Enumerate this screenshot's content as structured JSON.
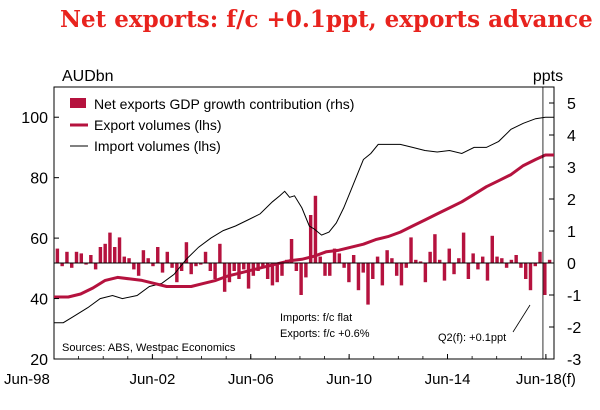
{
  "title": "Net exports: f/c +0.1ppt, exports advance",
  "chart_data": {
    "type": "bar+line",
    "y_left_label": "AUDbn",
    "y_right_label": "ppts",
    "y_left_lim": [
      20,
      110
    ],
    "y_right_lim": [
      -3,
      5.5
    ],
    "y_left_ticks": [
      20,
      40,
      60,
      80,
      100
    ],
    "y_right_ticks": [
      -3,
      -2,
      -1,
      0,
      1,
      2,
      3,
      4,
      5
    ],
    "x_range": [
      1998.42,
      2018.75
    ],
    "x_ticks": [
      {
        "x": 1998.42,
        "label": "Jun-98"
      },
      {
        "x": 2002.42,
        "label": "Jun-02"
      },
      {
        "x": 2006.42,
        "label": "Jun-06"
      },
      {
        "x": 2010.42,
        "label": "Jun-10"
      },
      {
        "x": 2014.42,
        "label": "Jun-14"
      },
      {
        "x": 2018.42,
        "label": "Jun-18(f)"
      }
    ],
    "forecast_start": 2018.3,
    "colors": {
      "net_exports": "#b5123e",
      "export_volumes": "#b5123e",
      "import_volumes": "#000000"
    },
    "series": [
      {
        "name": "Net exports GDP growth contribution (rhs)",
        "kind": "bar",
        "axis": "right",
        "values": [
          0.45,
          -0.1,
          0.35,
          -0.15,
          0.35,
          0.3,
          -0.05,
          0.25,
          -0.2,
          0.5,
          0.6,
          0.95,
          0.5,
          0.8,
          0.2,
          0.15,
          -0.2,
          -0.4,
          0.4,
          0.15,
          -0.1,
          0.5,
          -0.3,
          0.35,
          -0.15,
          -0.6,
          -0.25,
          0.65,
          -0.35,
          -0.1,
          -0.05,
          0.35,
          -0.25,
          -0.5,
          0.6,
          -0.9,
          -0.6,
          -0.25,
          -0.5,
          -0.2,
          -0.8,
          -0.4,
          -0.25,
          -0.15,
          -0.5,
          -0.7,
          -0.6,
          -0.4,
          0.1,
          0.75,
          -0.25,
          -1.0,
          -0.45,
          1.5,
          2.1,
          0.2,
          -0.4,
          -0.4,
          0.45,
          0.3,
          -0.15,
          -0.6,
          0.25,
          -0.85,
          -0.3,
          -1.3,
          -0.5,
          0.2,
          -0.7,
          0.4,
          0.15,
          -0.4,
          -0.7,
          -0.15,
          0.8,
          0.1,
          0.05,
          -0.6,
          0.35,
          0.9,
          0.1,
          -0.55,
          0.45,
          -0.35,
          0.15,
          0.95,
          -0.5,
          0.3,
          -0.2,
          0.2,
          -0.55,
          0.85,
          0.2,
          0.15,
          -0.15,
          0.1,
          0.25,
          -0.15,
          -0.5,
          -0.85,
          -0.1,
          0.35,
          -1.0,
          0.1
        ]
      },
      {
        "name": "Export volumes (lhs)",
        "kind": "line",
        "axis": "left",
        "points": [
          [
            1998.42,
            40.5
          ],
          [
            1999.0,
            40.5
          ],
          [
            1999.5,
            41.5
          ],
          [
            2000.0,
            43.5
          ],
          [
            2000.5,
            46
          ],
          [
            2001.0,
            47
          ],
          [
            2001.5,
            46.5
          ],
          [
            2002.0,
            46
          ],
          [
            2002.5,
            45
          ],
          [
            2003.0,
            44
          ],
          [
            2003.5,
            44
          ],
          [
            2004.0,
            44
          ],
          [
            2004.5,
            45
          ],
          [
            2005.0,
            46
          ],
          [
            2005.5,
            47.5
          ],
          [
            2006.0,
            48.5
          ],
          [
            2006.5,
            49.5
          ],
          [
            2007.0,
            50.5
          ],
          [
            2007.5,
            51.5
          ],
          [
            2008.0,
            52.5
          ],
          [
            2008.5,
            53
          ],
          [
            2009.0,
            54
          ],
          [
            2009.5,
            55.5
          ],
          [
            2010.0,
            56
          ],
          [
            2010.5,
            57
          ],
          [
            2011.0,
            58
          ],
          [
            2011.5,
            59.5
          ],
          [
            2012.0,
            60.5
          ],
          [
            2012.5,
            62
          ],
          [
            2013.0,
            64
          ],
          [
            2013.5,
            66
          ],
          [
            2014.0,
            68
          ],
          [
            2014.5,
            70
          ],
          [
            2015.0,
            72
          ],
          [
            2015.5,
            74.5
          ],
          [
            2016.0,
            77
          ],
          [
            2016.5,
            79
          ],
          [
            2017.0,
            81
          ],
          [
            2017.5,
            84
          ],
          [
            2018.0,
            86
          ],
          [
            2018.4,
            87.5
          ],
          [
            2018.75,
            87.5
          ]
        ]
      },
      {
        "name": "Import volumes (lhs)",
        "kind": "line",
        "axis": "left",
        "points": [
          [
            1998.42,
            32
          ],
          [
            1998.8,
            32
          ],
          [
            1999.2,
            34
          ],
          [
            1999.8,
            37
          ],
          [
            2000.3,
            40
          ],
          [
            2000.8,
            41
          ],
          [
            2001.2,
            40
          ],
          [
            2001.8,
            41
          ],
          [
            2002.3,
            44
          ],
          [
            2002.8,
            45
          ],
          [
            2003.3,
            48
          ],
          [
            2003.8,
            53
          ],
          [
            2004.3,
            57
          ],
          [
            2004.8,
            60
          ],
          [
            2005.3,
            62.5
          ],
          [
            2005.8,
            64
          ],
          [
            2006.3,
            66
          ],
          [
            2006.8,
            68
          ],
          [
            2007.3,
            72
          ],
          [
            2007.6,
            74
          ],
          [
            2007.8,
            75.5
          ],
          [
            2008.0,
            73.5
          ],
          [
            2008.2,
            74
          ],
          [
            2008.5,
            70
          ],
          [
            2008.8,
            64
          ],
          [
            2009.0,
            63
          ],
          [
            2009.3,
            61
          ],
          [
            2009.6,
            62
          ],
          [
            2009.9,
            65
          ],
          [
            2010.2,
            70
          ],
          [
            2010.5,
            76
          ],
          [
            2010.8,
            82
          ],
          [
            2011.0,
            86
          ],
          [
            2011.3,
            88
          ],
          [
            2011.6,
            91
          ],
          [
            2012.0,
            91
          ],
          [
            2012.5,
            91
          ],
          [
            2013.0,
            90
          ],
          [
            2013.5,
            89
          ],
          [
            2014.0,
            88.5
          ],
          [
            2014.5,
            89
          ],
          [
            2015.0,
            88
          ],
          [
            2015.5,
            90
          ],
          [
            2016.0,
            90
          ],
          [
            2016.5,
            92
          ],
          [
            2017.0,
            96
          ],
          [
            2017.5,
            98
          ],
          [
            2018.0,
            99.5
          ],
          [
            2018.4,
            100
          ],
          [
            2018.75,
            100
          ]
        ]
      }
    ],
    "annotations": [
      "Imports: f/c  flat",
      "Exports: f/c  +0.6%",
      "Q2(f): +0.1ppt",
      "Sources: ABS, Westpac Economics"
    ]
  }
}
